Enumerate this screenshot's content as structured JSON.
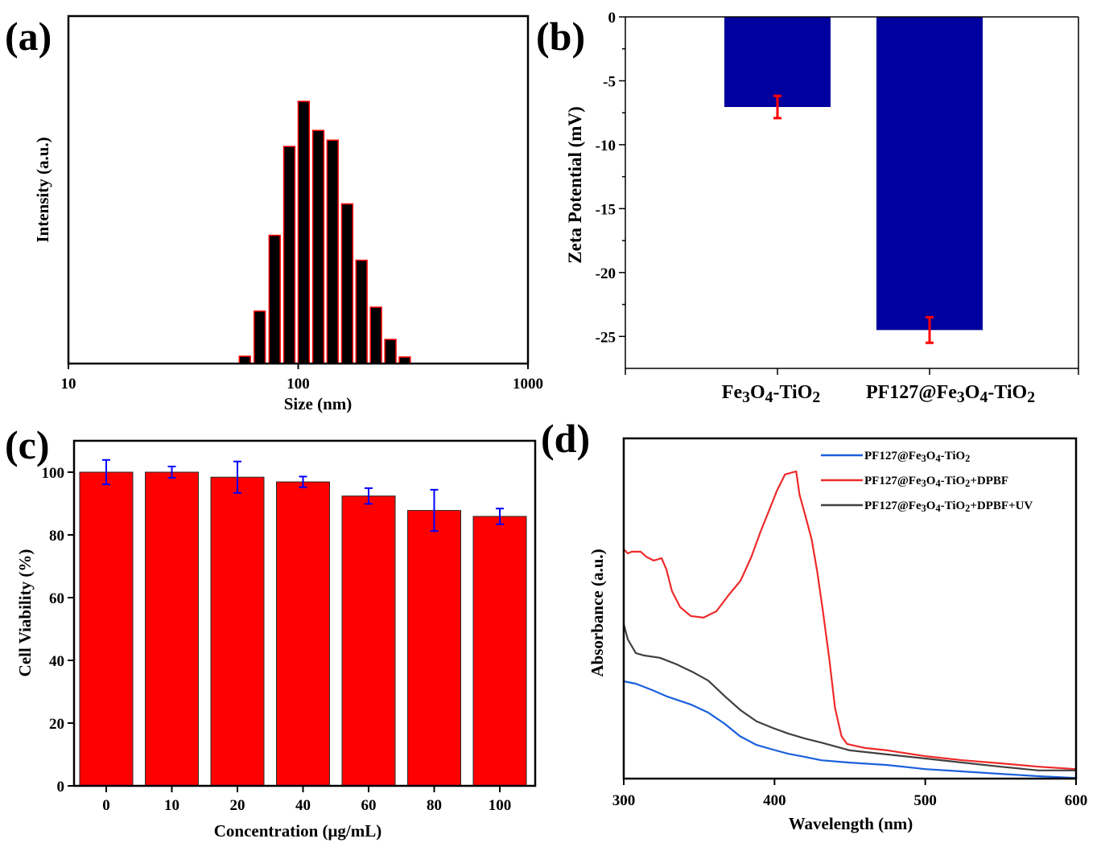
{
  "figure": {
    "panel_labels": [
      "(a)",
      "(b)",
      "(c)",
      "(d)"
    ]
  },
  "chart_data": [
    {
      "panel": "(a)",
      "type": "bar",
      "title": "",
      "xlabel": "Size (nm)",
      "ylabel": "Intensity (a.u.)",
      "x_scale": "log",
      "xlim": [
        10,
        1000
      ],
      "x_ticks": [
        "10",
        "100",
        "1000"
      ],
      "y_ticks": [],
      "bar_fill": "#000000",
      "bar_edge": "#ff0000",
      "bins_nm": [
        58.6,
        68.0,
        79.0,
        91.5,
        105.7,
        122.3,
        141.2,
        163.4,
        188.6,
        218.0,
        252.0,
        291.0
      ],
      "values": [
        0.028,
        0.2,
        0.489,
        0.828,
        1.0,
        0.889,
        0.852,
        0.609,
        0.394,
        0.215,
        0.092,
        0.025
      ],
      "ylim": [
        0,
        1.0
      ]
    },
    {
      "panel": "(b)",
      "type": "bar",
      "title": "",
      "xlabel": "",
      "ylabel": "Zeta Potential (mV)",
      "categories": [
        {
          "name": "Fe3O4-TiO2",
          "parts": [
            [
              "Fe",
              ""
            ],
            [
              "3",
              "sub"
            ],
            [
              "O",
              ""
            ],
            [
              "4",
              "sub"
            ],
            [
              "-TiO",
              ""
            ],
            [
              "2",
              "sub"
            ]
          ]
        },
        {
          "name": "PF127@Fe3O4-TiO2",
          "parts": [
            [
              "PF127@Fe",
              ""
            ],
            [
              "3",
              "sub"
            ],
            [
              "O",
              ""
            ],
            [
              "4",
              "sub"
            ],
            [
              "-TiO",
              ""
            ],
            [
              "2",
              "sub"
            ]
          ]
        }
      ],
      "values": [
        -7.05,
        -24.5
      ],
      "errors": [
        0.87,
        1.0
      ],
      "ylim": [
        -27.5,
        0
      ],
      "y_ticks": [
        0,
        -5,
        -10,
        -15,
        -20,
        -25
      ],
      "y_tick_labels": [
        "0",
        "-5",
        "-10",
        "-15",
        "-20",
        "-25"
      ],
      "bar_color": "#00009f",
      "error_color": "#ff0000"
    },
    {
      "panel": "(c)",
      "type": "bar",
      "title": "",
      "xlabel": "Concentration (μg/mL)",
      "ylabel": "Cell Viability (%)",
      "categories": [
        "0",
        "10",
        "20",
        "40",
        "60",
        "80",
        "100"
      ],
      "values": [
        100.0,
        100.0,
        98.4,
        96.9,
        92.4,
        87.8,
        85.9
      ],
      "errors": [
        3.9,
        1.8,
        5.0,
        1.7,
        2.5,
        6.6,
        2.5
      ],
      "ylim": [
        0,
        110
      ],
      "y_ticks": [
        0,
        20,
        40,
        60,
        80,
        100
      ],
      "y_tick_labels": [
        "0",
        "20",
        "40",
        "60",
        "80",
        "100"
      ],
      "bar_color": "#ff0000",
      "error_color": "#0000ff"
    },
    {
      "panel": "(d)",
      "type": "line",
      "title": "",
      "xlabel": "Wavelength (nm)",
      "ylabel": "Absorbance (a.u.)",
      "xlim": [
        300,
        600
      ],
      "ylim": [
        0,
        1
      ],
      "x_ticks": [
        300,
        400,
        500,
        600
      ],
      "x_tick_labels": [
        "300",
        "400",
        "500",
        "600"
      ],
      "legend_position": "top-right",
      "series": [
        {
          "name": "PF127@Fe3O4-TiO2",
          "legend_parts": [
            [
              "PF127@Fe",
              ""
            ],
            [
              "3",
              "sub"
            ],
            [
              "O",
              ""
            ],
            [
              "4",
              "sub"
            ],
            [
              "-TiO",
              ""
            ],
            [
              "2",
              "sub"
            ]
          ],
          "color": "#1a5fdc",
          "x": [
            300,
            308,
            319,
            329,
            345,
            356,
            367,
            377,
            388,
            399,
            409,
            420,
            431,
            450,
            475,
            500,
            525,
            550,
            575,
            600
          ],
          "y": [
            0.286,
            0.279,
            0.26,
            0.241,
            0.217,
            0.194,
            0.161,
            0.125,
            0.099,
            0.085,
            0.073,
            0.064,
            0.054,
            0.047,
            0.04,
            0.028,
            0.021,
            0.014,
            0.007,
            0.002
          ]
        },
        {
          "name": "PF127@Fe3O4-TiO2+DPBF",
          "legend_parts": [
            [
              "PF127@Fe",
              ""
            ],
            [
              "3",
              "sub"
            ],
            [
              "O",
              ""
            ],
            [
              "4",
              "sub"
            ],
            [
              "-TiO",
              ""
            ],
            [
              "2",
              "sub"
            ],
            [
              "+DPBF",
              ""
            ]
          ],
          "color": "#ee2a2a",
          "x": [
            300,
            302.7,
            305.3,
            311.2,
            315,
            319.8,
            325.1,
            328.3,
            332,
            337.4,
            344.4,
            352.9,
            361.5,
            369.5,
            377.5,
            384.5,
            390.9,
            396.3,
            401.6,
            407,
            414.4,
            416.6,
            420.3,
            424.6,
            428.3,
            432.1,
            436.4,
            440.1,
            444.4,
            448.1,
            460,
            475,
            500,
            525,
            550,
            575,
            600
          ],
          "y": [
            0.674,
            0.662,
            0.667,
            0.667,
            0.652,
            0.641,
            0.648,
            0.615,
            0.551,
            0.504,
            0.478,
            0.473,
            0.492,
            0.539,
            0.582,
            0.65,
            0.728,
            0.787,
            0.846,
            0.894,
            0.903,
            0.835,
            0.775,
            0.704,
            0.61,
            0.492,
            0.35,
            0.208,
            0.125,
            0.102,
            0.09,
            0.083,
            0.066,
            0.054,
            0.045,
            0.035,
            0.028
          ]
        },
        {
          "name": "PF127@Fe3O4-TiO2+DPBF+UV",
          "legend_parts": [
            [
              "PF127@Fe",
              ""
            ],
            [
              "3",
              "sub"
            ],
            [
              "O",
              ""
            ],
            [
              "4",
              "sub"
            ],
            [
              "-TiO",
              ""
            ],
            [
              "2",
              "sub"
            ],
            [
              "+DPBF+UV",
              ""
            ]
          ],
          "color": "#404040",
          "x": [
            300,
            302.7,
            308,
            313.4,
            324,
            335,
            345.5,
            356.1,
            366.8,
            377.5,
            388.2,
            398.8,
            409.4,
            420,
            431,
            450,
            475,
            500,
            525,
            550,
            575,
            600
          ],
          "y": [
            0.454,
            0.409,
            0.369,
            0.362,
            0.355,
            0.336,
            0.314,
            0.288,
            0.243,
            0.201,
            0.168,
            0.149,
            0.132,
            0.118,
            0.106,
            0.083,
            0.071,
            0.059,
            0.047,
            0.035,
            0.024,
            0.024
          ]
        }
      ]
    }
  ]
}
